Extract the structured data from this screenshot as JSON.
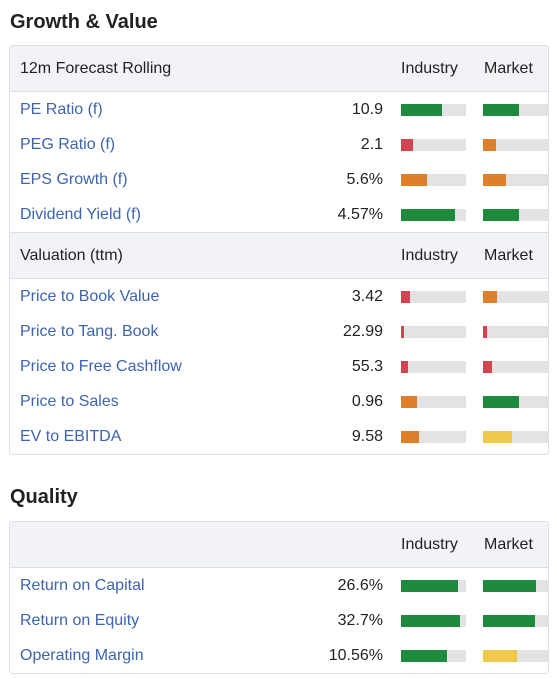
{
  "colors": {
    "green": "#1e8a3e",
    "red": "#d2444f",
    "orange": "#e07f2a",
    "yellow": "#f0c84a",
    "track": "#e3e3e3",
    "link": "#3d64b0"
  },
  "growth": {
    "title": "Growth & Value",
    "forecast": {
      "header": "12m Forecast Rolling",
      "industry_label": "Industry",
      "market_label": "Market",
      "rows": [
        {
          "label": "PE Ratio (f)",
          "value": "10.9",
          "industry": {
            "fill": 0.63,
            "color": "green"
          },
          "market": {
            "fill": 0.55,
            "color": "green"
          }
        },
        {
          "label": "PEG Ratio (f)",
          "value": "2.1",
          "industry": {
            "fill": 0.18,
            "color": "red"
          },
          "market": {
            "fill": 0.2,
            "color": "orange"
          }
        },
        {
          "label": "EPS Growth (f)",
          "value": "5.6%",
          "industry": {
            "fill": 0.4,
            "color": "orange"
          },
          "market": {
            "fill": 0.35,
            "color": "orange"
          }
        },
        {
          "label": "Dividend Yield (f)",
          "value": "4.57%",
          "industry": {
            "fill": 0.83,
            "color": "green"
          },
          "market": {
            "fill": 0.56,
            "color": "green"
          }
        }
      ]
    },
    "valuation": {
      "header": "Valuation (ttm)",
      "industry_label": "Industry",
      "market_label": "Market",
      "rows": [
        {
          "label": "Price to Book Value",
          "value": "3.42",
          "industry": {
            "fill": 0.14,
            "color": "red"
          },
          "market": {
            "fill": 0.22,
            "color": "orange"
          }
        },
        {
          "label": "Price to Tang. Book",
          "value": "22.99",
          "industry": {
            "fill": 0.04,
            "color": "red"
          },
          "market": {
            "fill": 0.06,
            "color": "red"
          }
        },
        {
          "label": "Price to Free Cashflow",
          "value": "55.3",
          "industry": {
            "fill": 0.1,
            "color": "red"
          },
          "market": {
            "fill": 0.14,
            "color": "red"
          }
        },
        {
          "label": "Price to Sales",
          "value": "0.96",
          "industry": {
            "fill": 0.24,
            "color": "orange"
          },
          "market": {
            "fill": 0.56,
            "color": "green"
          }
        },
        {
          "label": "EV to EBITDA",
          "value": "9.58",
          "industry": {
            "fill": 0.27,
            "color": "orange"
          },
          "market": {
            "fill": 0.45,
            "color": "yellow"
          }
        }
      ]
    }
  },
  "quality": {
    "title": "Quality",
    "header": "",
    "industry_label": "Industry",
    "market_label": "Market",
    "rows": [
      {
        "label": "Return on Capital",
        "value": "26.6%",
        "industry": {
          "fill": 0.88,
          "color": "green"
        },
        "market": {
          "fill": 0.82,
          "color": "green"
        }
      },
      {
        "label": "Return on Equity",
        "value": "32.7%",
        "industry": {
          "fill": 0.91,
          "color": "green"
        },
        "market": {
          "fill": 0.8,
          "color": "green"
        }
      },
      {
        "label": "Operating Margin",
        "value": "10.56%",
        "industry": {
          "fill": 0.71,
          "color": "green"
        },
        "market": {
          "fill": 0.52,
          "color": "yellow"
        }
      }
    ]
  }
}
